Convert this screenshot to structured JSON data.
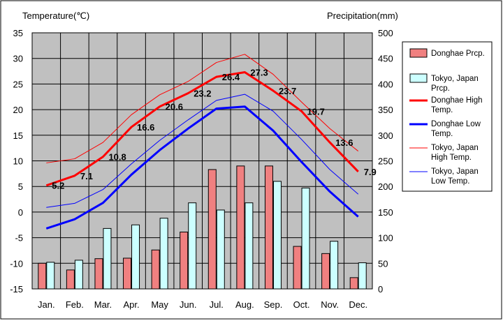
{
  "chart_data": {
    "type": "bar",
    "categories": [
      "Jan.",
      "Feb.",
      "Mar.",
      "Apr.",
      "May",
      "Jun.",
      "Jul.",
      "Aug.",
      "Sep.",
      "Oct.",
      "Nov.",
      "Dec."
    ],
    "left_axis": {
      "label": "Temperature(℃)",
      "range": [
        -15,
        35
      ],
      "ticks": [
        35,
        30,
        25,
        20,
        15,
        10,
        5,
        0,
        -5,
        -10,
        -15
      ]
    },
    "right_axis": {
      "label": "Precipitation(mm)",
      "range": [
        0,
        500
      ],
      "ticks": [
        500,
        450,
        400,
        350,
        300,
        250,
        200,
        150,
        100,
        50,
        0
      ]
    },
    "grid": true,
    "legend_position": "right",
    "bar_series": [
      {
        "name": "Donghae Prcp.",
        "color": "#f08080",
        "values": [
          50,
          37,
          59,
          60,
          76,
          111,
          233,
          240,
          240,
          83,
          69,
          22
        ]
      },
      {
        "name": "Tokyo, Japan Prcp.",
        "color": "#ccffff",
        "values": [
          52,
          56,
          118,
          125,
          138,
          168,
          154,
          168,
          210,
          197,
          93,
          51
        ]
      }
    ],
    "line_series": [
      {
        "name": "Donghae High Temp.",
        "color": "#ff0000",
        "width": 3,
        "values": [
          5.2,
          7.1,
          10.8,
          16.6,
          20.6,
          23.2,
          26.4,
          27.3,
          23.7,
          19.7,
          13.6,
          7.9
        ],
        "labels": [
          "5.2",
          "7.1",
          "10.8",
          "16.6",
          "20.6",
          "23.2",
          "26.4",
          "27.3",
          "23.7",
          "19.7",
          "13.6",
          "7.9"
        ]
      },
      {
        "name": "Donghae Low Temp.",
        "color": "#0000ff",
        "width": 3,
        "values": [
          -3.2,
          -1.4,
          1.8,
          7.3,
          12.1,
          16.3,
          20.2,
          20.6,
          15.9,
          9.8,
          4.0,
          -0.9
        ]
      },
      {
        "name": "Tokyo, Japan High Temp.",
        "color": "#ff0000",
        "width": 1,
        "values": [
          9.6,
          10.4,
          13.6,
          19.0,
          22.9,
          25.5,
          29.2,
          30.8,
          26.9,
          21.5,
          16.3,
          11.9
        ]
      },
      {
        "name": "Tokyo, Japan Low Temp.",
        "color": "#0000ff",
        "width": 1,
        "values": [
          0.9,
          1.7,
          4.4,
          9.4,
          14.0,
          18.0,
          21.8,
          23.0,
          19.7,
          14.2,
          8.3,
          3.5
        ]
      }
    ]
  }
}
